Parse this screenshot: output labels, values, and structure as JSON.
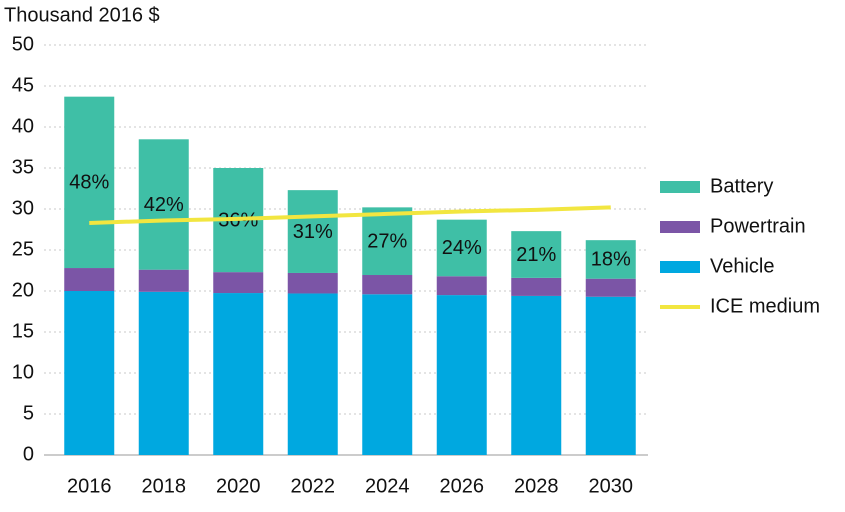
{
  "chart_data": {
    "type": "bar",
    "stacked": true,
    "title": "Thousand 2016 $",
    "categories": [
      "2016",
      "2018",
      "2020",
      "2022",
      "2024",
      "2026",
      "2028",
      "2030"
    ],
    "series": [
      {
        "name": "Battery",
        "color": "#3fbfa6",
        "values": [
          20.9,
          15.9,
          12.7,
          10.1,
          8.25,
          6.9,
          5.7,
          4.7
        ]
      },
      {
        "name": "Powertrain",
        "color": "#7b55a6",
        "values": [
          2.8,
          2.7,
          2.55,
          2.5,
          2.35,
          2.3,
          2.2,
          2.2
        ]
      },
      {
        "name": "Vehicle",
        "color": "#00a8e0",
        "values": [
          20.0,
          19.9,
          19.75,
          19.7,
          19.6,
          19.5,
          19.4,
          19.3
        ]
      },
      {
        "name": "ICE medium",
        "type": "line",
        "color": "#f2e640",
        "values": [
          28.3,
          28.6,
          28.8,
          29.1,
          29.4,
          29.7,
          29.9,
          30.2
        ]
      }
    ],
    "battery_share": {
      "values": [
        48,
        42,
        36,
        31,
        27,
        24,
        21,
        18
      ],
      "value_labels": [
        "48%",
        "42%",
        "36%",
        "31%",
        "27%",
        "24%",
        "21%",
        "18%"
      ]
    },
    "ylim": [
      0,
      50
    ],
    "yticks": [
      0,
      5,
      10,
      15,
      20,
      25,
      30,
      35,
      40,
      45,
      50
    ],
    "grid": true,
    "legend": "right"
  }
}
